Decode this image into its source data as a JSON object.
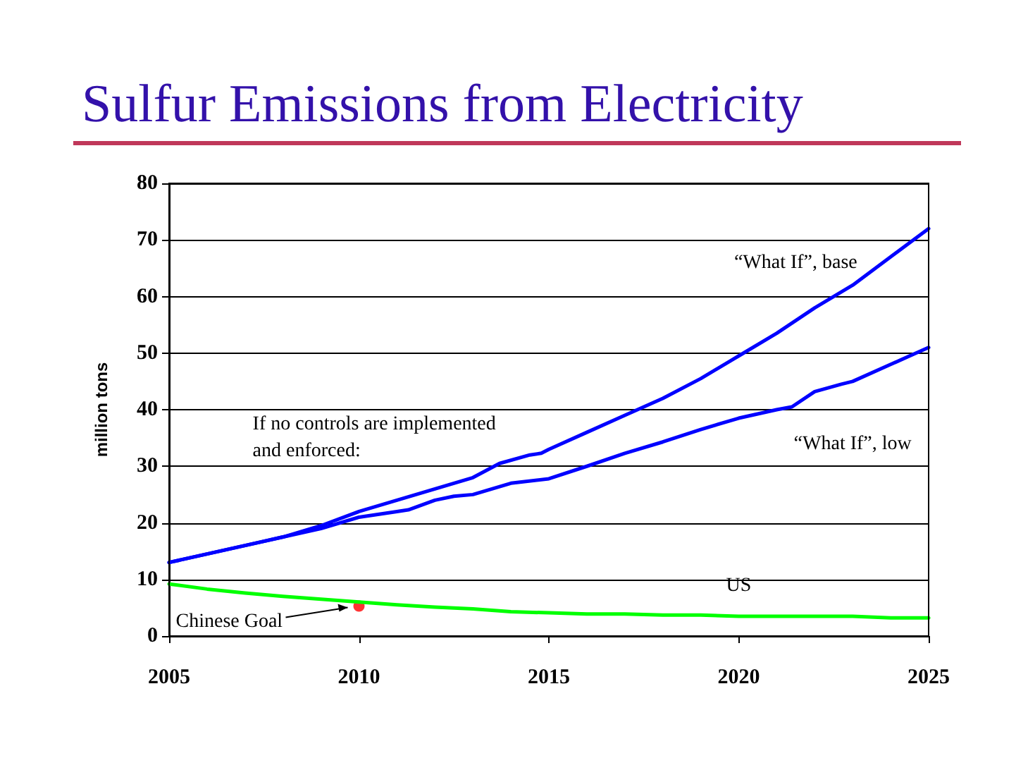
{
  "chart_data": {
    "type": "line",
    "title": "Sulfur Emissions from Electricity",
    "ylabel": "million tons",
    "xlim": [
      2005,
      2025
    ],
    "xticks": [
      2005,
      2010,
      2015,
      2020,
      2025
    ],
    "ylim": [
      0,
      80
    ],
    "yticks": [
      0,
      10,
      20,
      30,
      40,
      50,
      60,
      70,
      80
    ],
    "grid": "y",
    "legend": false,
    "marker": "none",
    "line_style": "solid",
    "annotations": [
      "If no controls are implemented and enforced:",
      {
        "text": "Chinese Goal",
        "x": 2010,
        "y": 5.3
      }
    ],
    "series": [
      {
        "name": "“What If”, base",
        "color": "#0000ff",
        "x": [
          2005,
          2006,
          2007,
          2008,
          2009,
          2010,
          2011,
          2012,
          2013,
          2013.7,
          2014.5,
          2014.8,
          2015,
          2016,
          2017,
          2018,
          2019,
          2020,
          2021,
          2022,
          2023,
          2024,
          2025
        ],
        "values": [
          13,
          14.5,
          16,
          17.5,
          19.5,
          22,
          24,
          26,
          28,
          30.5,
          32,
          32.3,
          33,
          36,
          39,
          42,
          45.5,
          49.5,
          53.5,
          58,
          62,
          67,
          72
        ]
      },
      {
        "name": "“What If”, low",
        "color": "#0000ff",
        "x": [
          2005,
          2006,
          2007,
          2008,
          2009,
          2010,
          2011,
          2011.3,
          2012,
          2012.5,
          2013,
          2013.5,
          2014,
          2015,
          2016,
          2017,
          2018,
          2019,
          2020,
          2021,
          2021.4,
          2022,
          2022.7,
          2023,
          2024,
          2025
        ],
        "values": [
          13,
          14.5,
          16,
          17.5,
          19,
          21,
          22,
          22.3,
          24,
          24.7,
          25,
          26,
          27,
          27.8,
          30,
          32.3,
          34.3,
          36.5,
          38.5,
          40,
          40.5,
          43.2,
          44.5,
          45,
          48,
          51
        ]
      },
      {
        "name": "US",
        "color": "#00ff00",
        "x": [
          2005,
          2006,
          2007,
          2008,
          2009,
          2010,
          2011,
          2012,
          2013,
          2014,
          2015,
          2016,
          2017,
          2018,
          2019,
          2020,
          2021,
          2022,
          2023,
          2024,
          2025
        ],
        "values": [
          9.2,
          8.3,
          7.6,
          7,
          6.5,
          6,
          5.5,
          5.1,
          4.8,
          4.3,
          4.1,
          3.9,
          3.9,
          3.7,
          3.7,
          3.5,
          3.5,
          3.5,
          3.5,
          3.2,
          3.2
        ]
      },
      {
        "type": "scatter",
        "marker": "circle",
        "color": "#ff0000",
        "x": [
          2010
        ],
        "values": [
          5.3
        ]
      }
    ]
  }
}
